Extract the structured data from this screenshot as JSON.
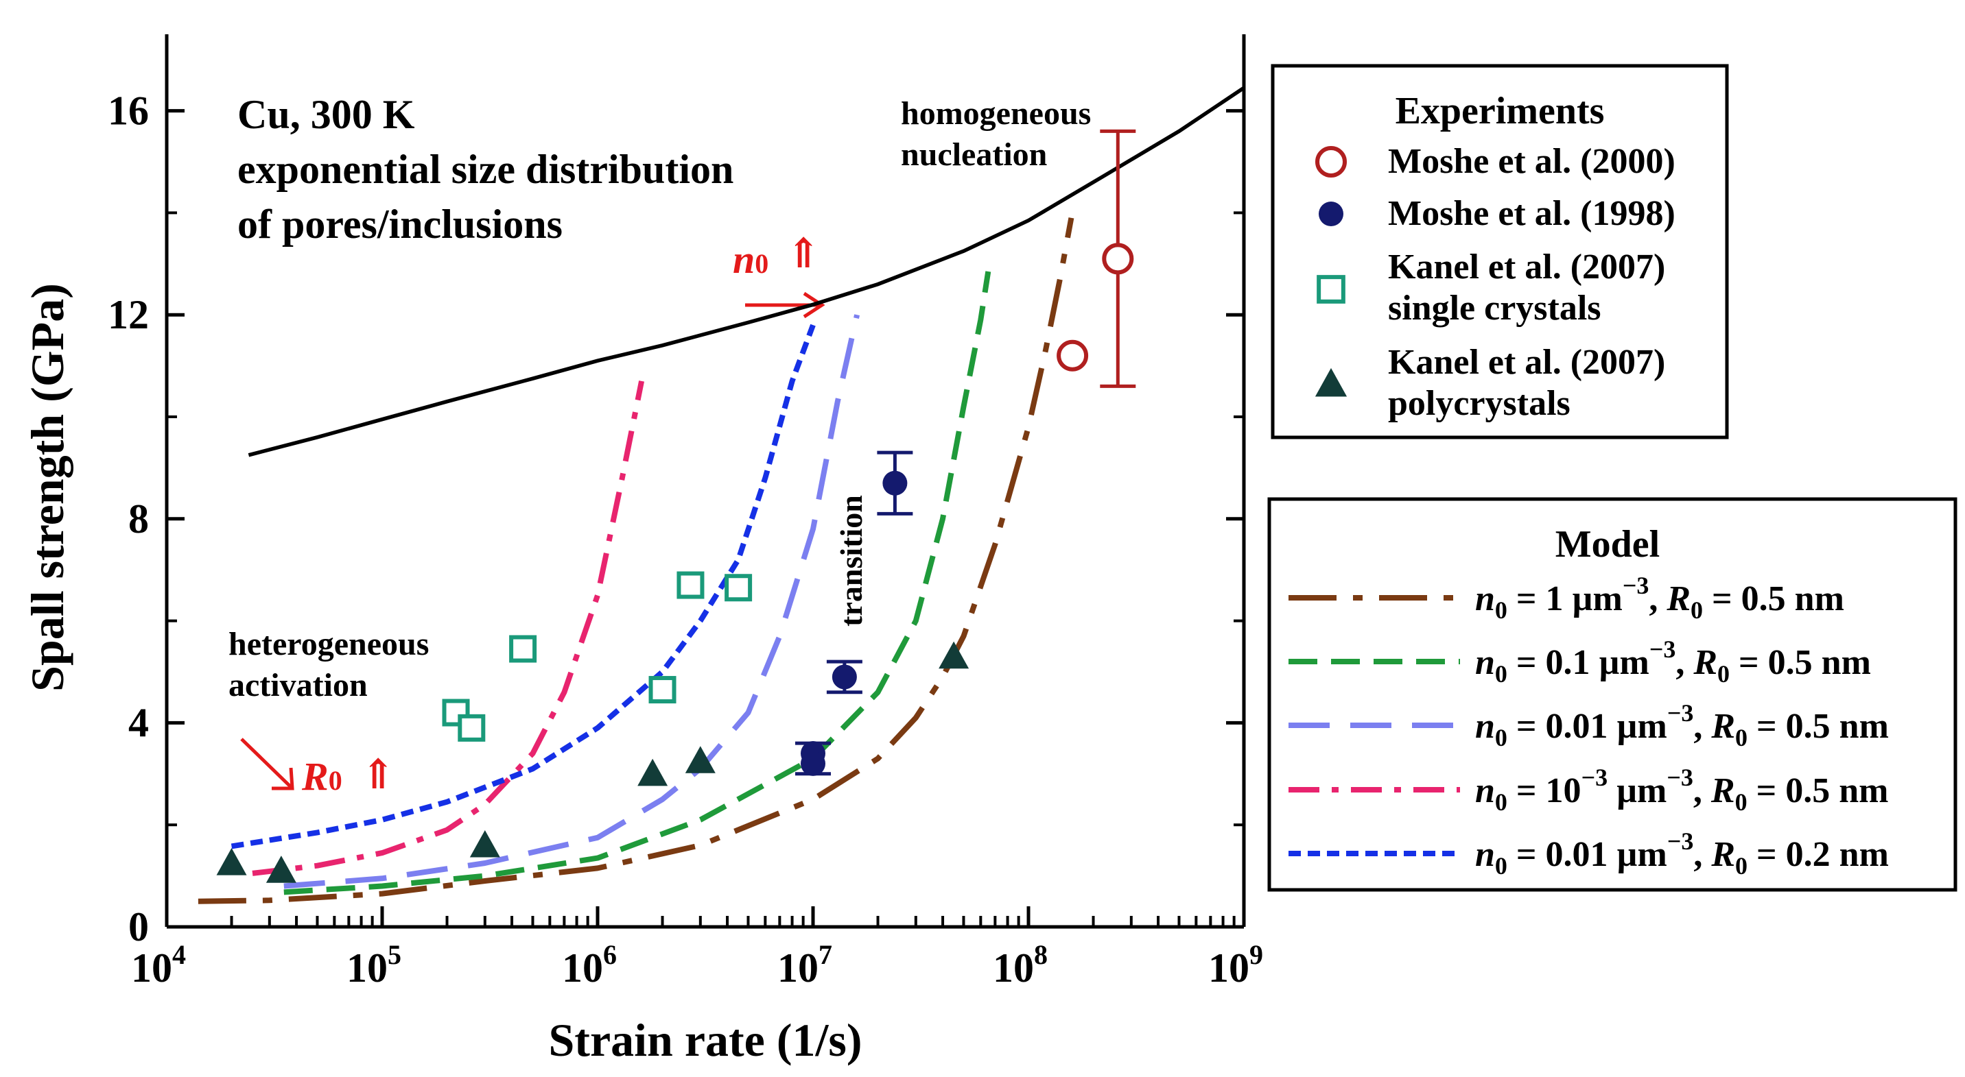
{
  "chart_data": {
    "type": "line",
    "xscale": "log",
    "xlabel": "Strain rate (1/s)",
    "ylabel": "Spall strength (GPa)",
    "xlim": [
      10000,
      1000000000
    ],
    "ylim": [
      0,
      17.5
    ],
    "x_ticks": [
      {
        "value": 10000,
        "base": "10",
        "exp": "4"
      },
      {
        "value": 100000,
        "base": "10",
        "exp": "5"
      },
      {
        "value": 1000000,
        "base": "10",
        "exp": "6"
      },
      {
        "value": 10000000,
        "base": "10",
        "exp": "7"
      },
      {
        "value": 100000000,
        "base": "10",
        "exp": "8"
      },
      {
        "value": 1000000000,
        "base": "10",
        "exp": "9"
      }
    ],
    "y_ticks": [
      {
        "value": 0,
        "label": "0"
      },
      {
        "value": 4,
        "label": "4"
      },
      {
        "value": 8,
        "label": "8"
      },
      {
        "value": 12,
        "label": "12"
      },
      {
        "value": 16,
        "label": "16"
      }
    ],
    "annotations": {
      "title_lines": [
        "Cu, 300 K",
        "exponential size distribution",
        "of pores/inclusions"
      ],
      "homogeneous_lines": [
        "homogeneous",
        "nucleation"
      ],
      "heterogeneous_lines": [
        "heterogeneous",
        "activation"
      ],
      "transition": "transition",
      "n0_symbol": "n",
      "n0_sub": "0",
      "r0_symbol": "R",
      "r0_sub": "0",
      "up_arrow": "⇑"
    },
    "envelope": {
      "name": "homogeneous nucleation limit",
      "color": "#000000",
      "points": [
        [
          24000.0,
          9.25
        ],
        [
          50000.0,
          9.6
        ],
        [
          100000.0,
          9.95
        ],
        [
          200000.0,
          10.3
        ],
        [
          500000.0,
          10.75
        ],
        [
          1000000.0,
          11.1
        ],
        [
          2000000.0,
          11.4
        ],
        [
          5000000.0,
          11.85
        ],
        [
          10000000.0,
          12.2
        ],
        [
          20000000.0,
          12.6
        ],
        [
          50000000.0,
          13.25
        ],
        [
          100000000.0,
          13.85
        ],
        [
          200000000.0,
          14.6
        ],
        [
          500000000.0,
          15.6
        ],
        [
          1000000000.0,
          16.45
        ]
      ]
    },
    "model_series": [
      {
        "name": "n0 = 1 µm⁻³, R0 = 0.5 nm",
        "color": "#7a3a12",
        "dash": "70 24 14 24",
        "points": [
          [
            14000.0,
            0.5
          ],
          [
            30000.0,
            0.52
          ],
          [
            100000.0,
            0.65
          ],
          [
            300000.0,
            0.9
          ],
          [
            1000000.0,
            1.15
          ],
          [
            3000000.0,
            1.6
          ],
          [
            10000000.0,
            2.5
          ],
          [
            20000000.0,
            3.3
          ],
          [
            30000000.0,
            4.1
          ],
          [
            40000000.0,
            4.9
          ],
          [
            50000000.0,
            5.7
          ],
          [
            70000000.0,
            7.5
          ],
          [
            100000000.0,
            9.8
          ],
          [
            120000000.0,
            11.3
          ],
          [
            140000000.0,
            12.7
          ],
          [
            158000000.0,
            13.9
          ]
        ]
      },
      {
        "name": "n0 = 0.1 µm⁻³, R0 = 0.5 nm",
        "color": "#1f9a3a",
        "dash": "42 20",
        "points": [
          [
            35000.0,
            0.68
          ],
          [
            100000.0,
            0.8
          ],
          [
            300000.0,
            1.0
          ],
          [
            1000000.0,
            1.35
          ],
          [
            3000000.0,
            2.1
          ],
          [
            10000000.0,
            3.3
          ],
          [
            20000000.0,
            4.6
          ],
          [
            30000000.0,
            6.0
          ],
          [
            40000000.0,
            8.0
          ],
          [
            50000000.0,
            10.2
          ],
          [
            60000000.0,
            11.9
          ],
          [
            65000000.0,
            12.85
          ]
        ]
      },
      {
        "name": "n0 = 0.01 µm⁻³, R0 = 0.5 nm",
        "color": "#7b7ff0",
        "dash": "60 30",
        "points": [
          [
            35000.0,
            0.8
          ],
          [
            100000.0,
            0.95
          ],
          [
            300000.0,
            1.25
          ],
          [
            1000000.0,
            1.75
          ],
          [
            2000000.0,
            2.5
          ],
          [
            3000000.0,
            3.1
          ],
          [
            5000000.0,
            4.2
          ],
          [
            7000000.0,
            5.7
          ],
          [
            10000000.0,
            7.8
          ],
          [
            13000000.0,
            10.3
          ],
          [
            16000000.0,
            12.0
          ]
        ]
      },
      {
        "name": "n0 = 10⁻³ µm⁻³, R0 = 0.5 nm",
        "color": "#e8246e",
        "dash": "45 18 10 18",
        "points": [
          [
            25000.0,
            1.05
          ],
          [
            50000.0,
            1.2
          ],
          [
            100000.0,
            1.45
          ],
          [
            200000.0,
            1.9
          ],
          [
            300000.0,
            2.4
          ],
          [
            500000.0,
            3.4
          ],
          [
            700000.0,
            4.6
          ],
          [
            1000000.0,
            6.5
          ],
          [
            1300000.0,
            8.8
          ],
          [
            1600000.0,
            10.7
          ]
        ]
      },
      {
        "name": "n0 = 0.01 µm⁻³, R0 = 0.2 nm",
        "color": "#1530e6",
        "dash": "18 10",
        "points": [
          [
            20000.0,
            1.58
          ],
          [
            50000.0,
            1.85
          ],
          [
            100000.0,
            2.1
          ],
          [
            200000.0,
            2.45
          ],
          [
            500000.0,
            3.1
          ],
          [
            1000000.0,
            3.9
          ],
          [
            2000000.0,
            5.0
          ],
          [
            3000000.0,
            6.0
          ],
          [
            4500000.0,
            7.2
          ],
          [
            6000000.0,
            8.8
          ],
          [
            8000000.0,
            10.7
          ],
          [
            10000000.0,
            11.8
          ]
        ]
      }
    ],
    "experiments": [
      {
        "name": "Moshe et al. (2000)",
        "marker": "open-circle",
        "color": "#b01f1f",
        "points": [
          [
            160000000.0,
            11.2
          ],
          [
            260000000.0,
            13.1
          ]
        ],
        "error_bars": [
          {
            "x": 260000000.0,
            "y": 13.1,
            "low": 10.6,
            "high": 15.6
          }
        ]
      },
      {
        "name": "Moshe et al. (1998)",
        "marker": "filled-circle",
        "color": "#141a6e",
        "points": [
          [
            10000000.0,
            3.4
          ],
          [
            10000000.0,
            3.2
          ],
          [
            14000000.0,
            4.9
          ],
          [
            24000000.0,
            8.7
          ]
        ],
        "error_bars": [
          {
            "x": 10000000.0,
            "y": 3.3,
            "low": 3.0,
            "high": 3.6
          },
          {
            "x": 14000000.0,
            "y": 4.9,
            "low": 4.6,
            "high": 5.2
          },
          {
            "x": 24000000.0,
            "y": 8.7,
            "low": 8.1,
            "high": 9.3
          }
        ]
      },
      {
        "name": "Kanel et al. (2007) single crystals",
        "legend_lines": [
          "Kanel et al. (2007)",
          "single crystals"
        ],
        "marker": "open-square",
        "color": "#1a9a7a",
        "points": [
          [
            220000.0,
            4.2
          ],
          [
            260000.0,
            3.9
          ],
          [
            450000.0,
            5.45
          ],
          [
            2000000.0,
            4.65
          ],
          [
            2700000.0,
            6.7
          ],
          [
            4500000.0,
            6.65
          ]
        ]
      },
      {
        "name": "Kanel et al. (2007) polycrystals",
        "legend_lines": [
          "Kanel et al. (2007)",
          "polycrystals"
        ],
        "marker": "filled-triangle",
        "color": "#123c38",
        "points": [
          [
            20000.0,
            1.25
          ],
          [
            34000.0,
            1.1
          ],
          [
            300000.0,
            1.6
          ],
          [
            1800000.0,
            3.0
          ],
          [
            3000000.0,
            3.25
          ],
          [
            45000000.0,
            5.3
          ]
        ]
      }
    ],
    "legend_experiments": {
      "title": "Experiments",
      "position": "upper-right, outside plot"
    },
    "legend_model": {
      "title": "Model",
      "position": "lower-right, outside plot",
      "entries": [
        {
          "sup": "−3",
          "pre": " = 1 µm",
          "post": ", R",
          "tail": " = 0.5 nm"
        },
        {
          "sup": "−3",
          "pre": " = 0.1 µm",
          "post": ", R",
          "tail": " = 0.5 nm"
        },
        {
          "sup": "−3",
          "pre": " = 0.01 µm",
          "post": ", R",
          "tail": " = 0.5 nm"
        },
        {
          "sup": "−3",
          "pre": " = 10",
          "mid": "−3",
          "pre2": " µm",
          "post": ", R",
          "tail": " = 0.5 nm"
        },
        {
          "sup": "−3",
          "pre": " = 0.01 µm",
          "post": ", R",
          "tail": " = 0.2 nm"
        }
      ]
    }
  }
}
